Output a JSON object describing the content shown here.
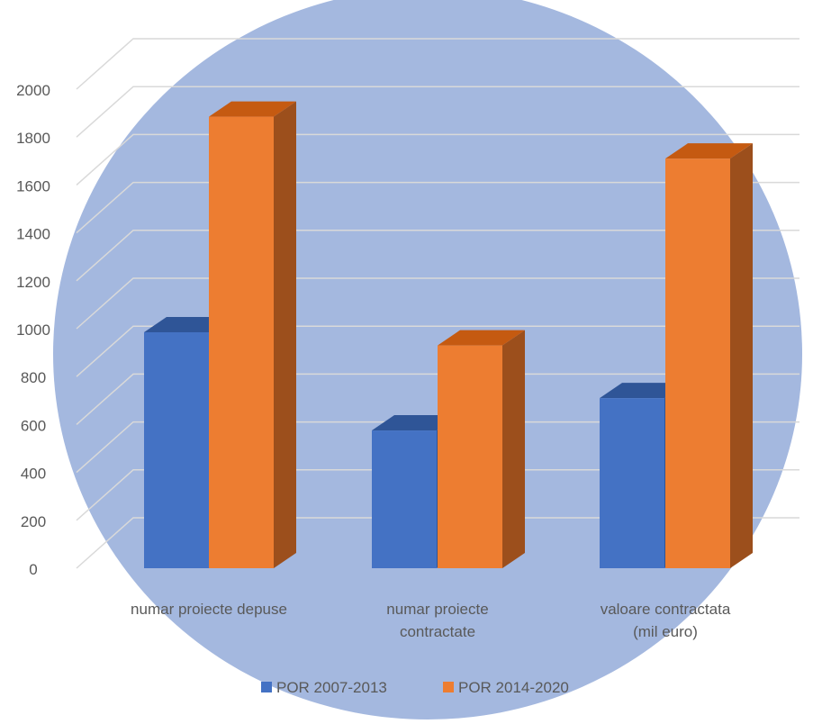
{
  "colors": {
    "background_circle": "#a4b8df",
    "gridline": "#d9d9d9",
    "text": "#595959",
    "series_1_front": "#4472c4",
    "series_1_side": "#2f5597",
    "series_1_top": "#2f5597",
    "series_2_front": "#ed7d31",
    "series_2_side": "#9c4f1c",
    "series_2_top": "#c55a11"
  },
  "chart_data": {
    "type": "bar",
    "style": "3d-clustered-column",
    "categories": [
      [
        "numar proiecte depuse"
      ],
      [
        "numar proiecte",
        "contractate"
      ],
      [
        "valoare contractata",
        "(mil euro)"
      ]
    ],
    "series": [
      {
        "name": "POR 2007-2013",
        "values": [
          985,
          575,
          710
        ]
      },
      {
        "name": "POR 2014-2020",
        "values": [
          1885,
          930,
          1710
        ]
      }
    ],
    "y_ticks": [
      0,
      200,
      400,
      600,
      800,
      1000,
      1200,
      1400,
      1600,
      1800,
      2000
    ],
    "ylim": [
      0,
      2000
    ],
    "grid": true,
    "legend_position": "bottom"
  }
}
